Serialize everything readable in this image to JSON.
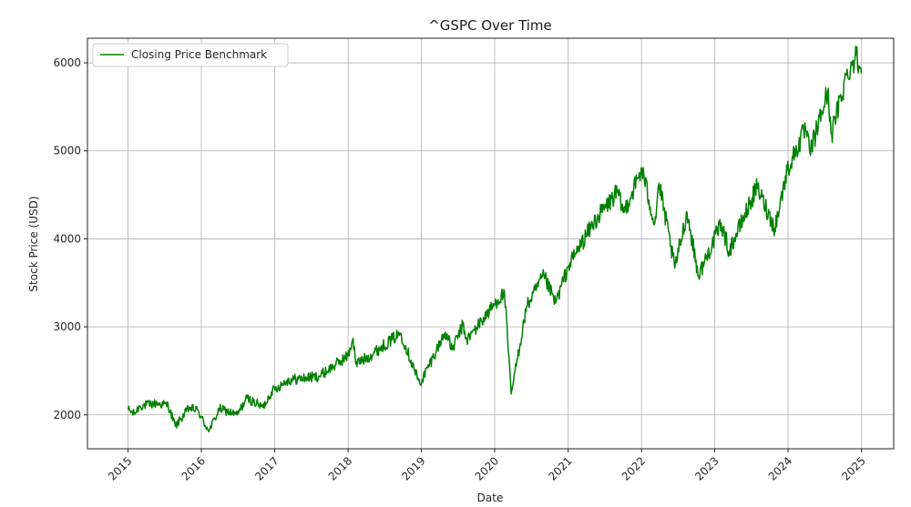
{
  "chart_data": {
    "type": "line",
    "title": "^GSPC Over Time",
    "xlabel": "Date",
    "ylabel": "Stock Price (USD)",
    "x_ticks": [
      "2015",
      "2016",
      "2017",
      "2018",
      "2019",
      "2020",
      "2021",
      "2022",
      "2023",
      "2024",
      "2025"
    ],
    "y_ticks": [
      2000,
      3000,
      4000,
      5000,
      6000
    ],
    "xlim": [
      "2014-06-13",
      "2025-06-10"
    ],
    "ylim": [
      1615,
      6280
    ],
    "grid": true,
    "legend": {
      "position": "top-left",
      "entries": [
        "Closing Price Benchmark"
      ]
    },
    "series": [
      {
        "name": "Closing Price Benchmark",
        "color": "#008000",
        "points": [
          [
            "2015-01-02",
            2058
          ],
          [
            "2015-02-01",
            2010
          ],
          [
            "2015-03-01",
            2100
          ],
          [
            "2015-05-20",
            2130
          ],
          [
            "2015-07-20",
            2110
          ],
          [
            "2015-08-25",
            1870
          ],
          [
            "2015-09-20",
            1950
          ],
          [
            "2015-11-01",
            2080
          ],
          [
            "2015-12-15",
            2050
          ],
          [
            "2016-01-20",
            1880
          ],
          [
            "2016-02-11",
            1830
          ],
          [
            "2016-04-01",
            2070
          ],
          [
            "2016-06-27",
            2000
          ],
          [
            "2016-08-15",
            2190
          ],
          [
            "2016-11-03",
            2085
          ],
          [
            "2016-12-15",
            2260
          ],
          [
            "2017-03-01",
            2390
          ],
          [
            "2017-08-10",
            2440
          ],
          [
            "2017-12-31",
            2670
          ],
          [
            "2018-01-26",
            2870
          ],
          [
            "2018-02-08",
            2580
          ],
          [
            "2018-04-05",
            2650
          ],
          [
            "2018-09-20",
            2930
          ],
          [
            "2018-12-24",
            2350
          ],
          [
            "2019-04-30",
            2940
          ],
          [
            "2019-06-03",
            2740
          ],
          [
            "2019-07-26",
            3020
          ],
          [
            "2019-08-15",
            2850
          ],
          [
            "2020-01-15",
            3300
          ],
          [
            "2020-02-19",
            3386
          ],
          [
            "2020-03-23",
            2237
          ],
          [
            "2020-06-08",
            3230
          ],
          [
            "2020-09-02",
            3580
          ],
          [
            "2020-10-30",
            3270
          ],
          [
            "2021-01-04",
            3700
          ],
          [
            "2021-05-10",
            4190
          ],
          [
            "2021-09-02",
            4530
          ],
          [
            "2021-10-04",
            4300
          ],
          [
            "2022-01-03",
            4790
          ],
          [
            "2022-03-08",
            4170
          ],
          [
            "2022-03-29",
            4630
          ],
          [
            "2022-06-16",
            3670
          ],
          [
            "2022-08-16",
            4300
          ],
          [
            "2022-10-12",
            3580
          ],
          [
            "2023-02-02",
            4180
          ],
          [
            "2023-03-13",
            3860
          ],
          [
            "2023-07-31",
            4590
          ],
          [
            "2023-10-27",
            4120
          ],
          [
            "2023-12-28",
            4780
          ],
          [
            "2024-03-28",
            5250
          ],
          [
            "2024-04-19",
            4970
          ],
          [
            "2024-07-16",
            5670
          ],
          [
            "2024-08-05",
            5190
          ],
          [
            "2024-10-18",
            5860
          ],
          [
            "2024-12-06",
            6090
          ],
          [
            "2024-12-31",
            5880
          ]
        ]
      }
    ]
  }
}
